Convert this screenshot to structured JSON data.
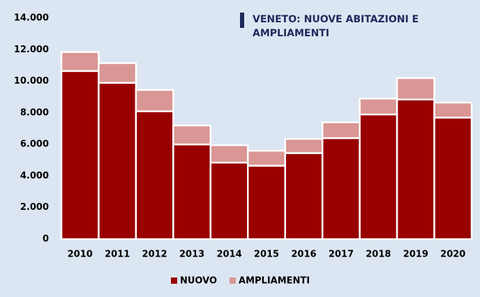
{
  "chart_data": {
    "type": "stacked_bar",
    "title": "VENETO: NUOVE ABITAZIONI E AMPLIAMENTI",
    "categories": [
      "2010",
      "2011",
      "2012",
      "2013",
      "2014",
      "2015",
      "2016",
      "2017",
      "2018",
      "2019",
      "2020"
    ],
    "series": [
      {
        "name": "NUOVO",
        "color": "#990000",
        "values": [
          10650,
          9900,
          8100,
          6000,
          4850,
          4650,
          5450,
          6400,
          7900,
          8850,
          7700
        ]
      },
      {
        "name": "AMPLIAMENTI",
        "color": "#d99694",
        "values": [
          1200,
          1250,
          1350,
          1200,
          1100,
          950,
          900,
          1000,
          1000,
          1350,
          950
        ]
      }
    ],
    "ylim": [
      0,
      14000
    ],
    "yticks": [
      0,
      {
        "value": 2000,
        "label": "2.000"
      },
      {
        "value": 4000,
        "label": "4.000"
      },
      {
        "value": 6000,
        "label": "6.000"
      },
      {
        "value": 8000,
        "label": "8.000"
      },
      {
        "value": 10000,
        "label": "10.000"
      },
      {
        "value": 12000,
        "label": "12.000"
      },
      {
        "value": 14000,
        "label": "14.000"
      }
    ],
    "legend": "bottom"
  }
}
